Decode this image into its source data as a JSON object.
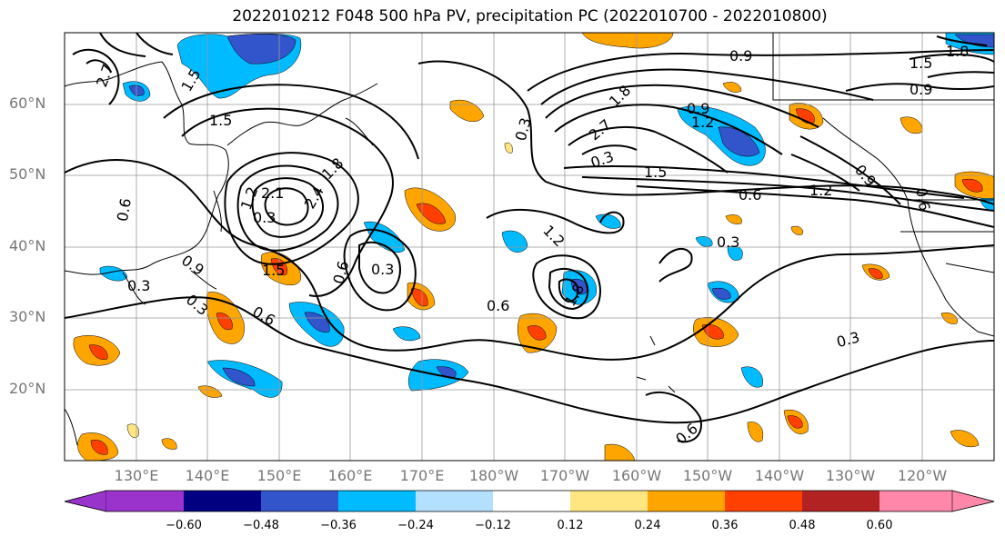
{
  "title": "2022010212 F048 500 hPa PV, precipitation PC (2022010700 - 2022010800)",
  "lat_labels": [
    "60°N",
    "50°N",
    "40°N",
    "30°N",
    "20°N"
  ],
  "lon_labels": [
    "130°E",
    "140°E",
    "150°E",
    "160°E",
    "170°E",
    "180°W",
    "170°W",
    "160°W",
    "150°W",
    "140°W",
    "130°W",
    "120°W"
  ],
  "colorbar": {
    "ticks": [
      "−0.60",
      "−0.48",
      "−0.36",
      "−0.24",
      "−0.12",
      "0.12",
      "0.24",
      "0.36",
      "0.48",
      "0.60"
    ],
    "colors": [
      "#9933cc",
      "#000080",
      "#3355cc",
      "#00bbff",
      "#b3e0ff",
      "#ffffff",
      "#ffe680",
      "#ffa500",
      "#ff4000",
      "#b22222",
      "#ff88aa"
    ]
  },
  "contour_labels": [
    "0.9",
    "1.5",
    "0.9",
    "0.3",
    "1.8",
    "0.9",
    "1.2",
    "0.6",
    "1.5",
    "0.3",
    "2.7",
    "1.2",
    "0.6",
    "0.9",
    "2.1",
    "2.4",
    "1.2",
    "1.8",
    "1.5",
    "0.3",
    "0.6",
    "0.6",
    "0.3",
    "0.3",
    "0.9",
    "0.3",
    "0.6",
    "0.6",
    "0.3",
    "0.3",
    "0.6",
    "1.8",
    "1.2",
    "1.5",
    "2.7",
    "1.5",
    "1.8"
  ]
}
